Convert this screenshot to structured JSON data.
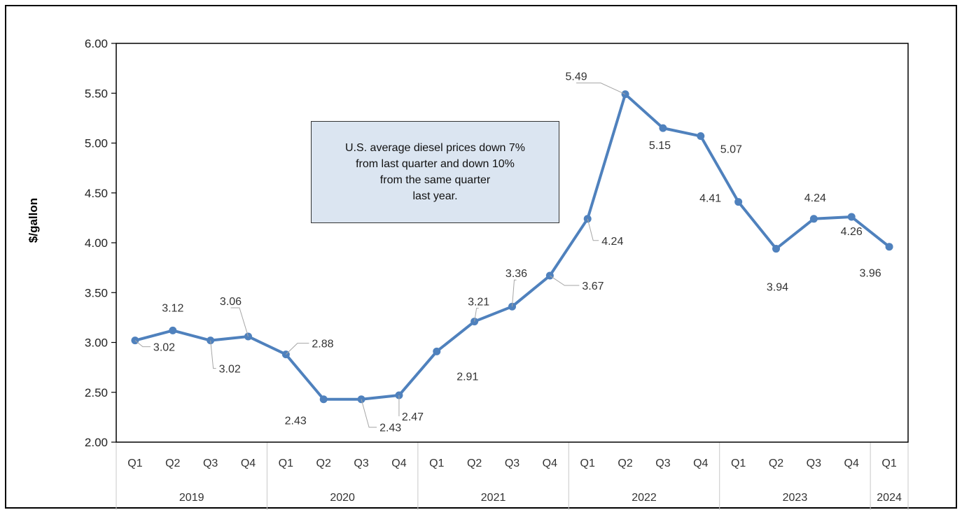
{
  "chart_data": {
    "type": "line",
    "title": "",
    "xlabel": "",
    "ylabel": "$/gallon",
    "ylim": [
      2.0,
      6.0
    ],
    "yticks": [
      "2.00",
      "2.50",
      "3.00",
      "3.50",
      "4.00",
      "4.50",
      "5.00",
      "5.50",
      "6.00"
    ],
    "grid": false,
    "legend": "none",
    "line_color": "#4f81bd",
    "categories": [
      "Q1",
      "Q2",
      "Q3",
      "Q4",
      "Q1",
      "Q2",
      "Q3",
      "Q4",
      "Q1",
      "Q2",
      "Q3",
      "Q4",
      "Q1",
      "Q2",
      "Q3",
      "Q4",
      "Q1",
      "Q2",
      "Q3",
      "Q4",
      "Q1"
    ],
    "years": [
      {
        "label": "2019",
        "quarters": 4
      },
      {
        "label": "2020",
        "quarters": 4
      },
      {
        "label": "2021",
        "quarters": 4
      },
      {
        "label": "2022",
        "quarters": 4
      },
      {
        "label": "2023",
        "quarters": 4
      },
      {
        "label": "2024",
        "quarters": 1
      }
    ],
    "series": [
      {
        "values": [
          3.02,
          3.12,
          3.02,
          3.06,
          2.88,
          2.43,
          2.43,
          2.47,
          2.91,
          3.21,
          3.36,
          3.67,
          4.24,
          5.49,
          5.15,
          5.07,
          4.41,
          3.94,
          4.24,
          4.26,
          3.96
        ],
        "labels": [
          "3.02",
          "3.12",
          "3.02",
          "3.06",
          "2.88",
          "2.43",
          "2.43",
          "2.47",
          "2.91",
          "3.21",
          "3.36",
          "3.67",
          "4.24",
          "5.49",
          "5.15",
          "5.07",
          "4.41",
          "3.94",
          "4.24",
          "4.26",
          "3.96"
        ]
      }
    ],
    "annotation": "U.S. average diesel prices down 7%\nfrom last quarter and down 10%\nfrom the same quarter\nlast year."
  }
}
